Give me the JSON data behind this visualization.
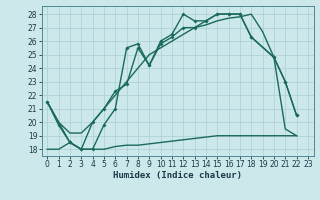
{
  "xlabel": "Humidex (Indice chaleur)",
  "bg_color": "#cce8ea",
  "grid_color": "#aacdd4",
  "line_color": "#1a6a5a",
  "tick_color": "#1a3a4a",
  "xlim": [
    -0.5,
    23.5
  ],
  "ylim": [
    17.5,
    28.6
  ],
  "yticks": [
    18,
    19,
    20,
    21,
    22,
    23,
    24,
    25,
    26,
    27,
    28
  ],
  "xticks": [
    0,
    1,
    2,
    3,
    4,
    5,
    6,
    7,
    8,
    9,
    10,
    11,
    12,
    13,
    14,
    15,
    16,
    17,
    18,
    19,
    20,
    21,
    22,
    23
  ],
  "line_bottom_x": [
    0,
    1,
    2,
    3,
    4,
    5,
    6,
    7,
    8,
    9,
    10,
    11,
    12,
    13,
    14,
    15,
    16,
    17,
    18,
    19,
    20,
    21,
    22
  ],
  "line_bottom_y": [
    18.0,
    18.0,
    18.5,
    18.0,
    18.0,
    18.0,
    18.2,
    18.3,
    18.3,
    18.4,
    18.5,
    18.6,
    18.7,
    18.8,
    18.9,
    19.0,
    19.0,
    19.0,
    19.0,
    19.0,
    19.0,
    19.0,
    19.0
  ],
  "line_diag_x": [
    0,
    1,
    2,
    3,
    4,
    5,
    6,
    7,
    8,
    9,
    10,
    11,
    12,
    13,
    14,
    15,
    16,
    17,
    18,
    19,
    20,
    21,
    22
  ],
  "line_diag_y": [
    21.5,
    20.0,
    19.2,
    19.2,
    20.0,
    21.0,
    22.0,
    23.0,
    24.0,
    25.0,
    25.5,
    26.0,
    26.5,
    27.0,
    27.2,
    27.5,
    27.7,
    27.8,
    28.0,
    26.7,
    24.8,
    19.5,
    19.0
  ],
  "line_top_x": [
    0,
    1,
    2,
    3,
    4,
    5,
    6,
    7,
    8,
    9,
    10,
    11,
    12,
    13,
    14,
    15,
    16,
    17,
    18,
    20,
    21,
    22
  ],
  "line_top_y": [
    21.5,
    19.8,
    18.5,
    18.0,
    18.0,
    19.8,
    21.0,
    25.5,
    25.8,
    24.2,
    26.0,
    26.5,
    28.0,
    27.5,
    27.5,
    28.0,
    28.0,
    28.0,
    26.3,
    24.8,
    23.0,
    20.5
  ],
  "line_mid_x": [
    0,
    2,
    3,
    4,
    5,
    6,
    7,
    8,
    9,
    10,
    11,
    12,
    13,
    14,
    15,
    16,
    17,
    18,
    20,
    21,
    22
  ],
  "line_mid_y": [
    21.5,
    18.5,
    18.0,
    20.0,
    21.0,
    22.3,
    22.8,
    25.5,
    24.2,
    25.8,
    26.3,
    27.0,
    27.0,
    27.5,
    28.0,
    28.0,
    28.0,
    26.3,
    24.8,
    23.0,
    20.5
  ]
}
